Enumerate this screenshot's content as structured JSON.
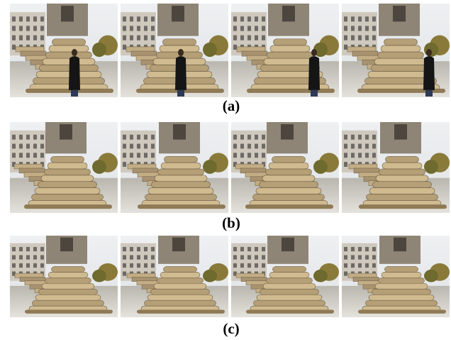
{
  "figure": {
    "rows": [
      {
        "label": "(a)"
      },
      {
        "label": "(b)"
      },
      {
        "label": "(c)"
      }
    ]
  }
}
